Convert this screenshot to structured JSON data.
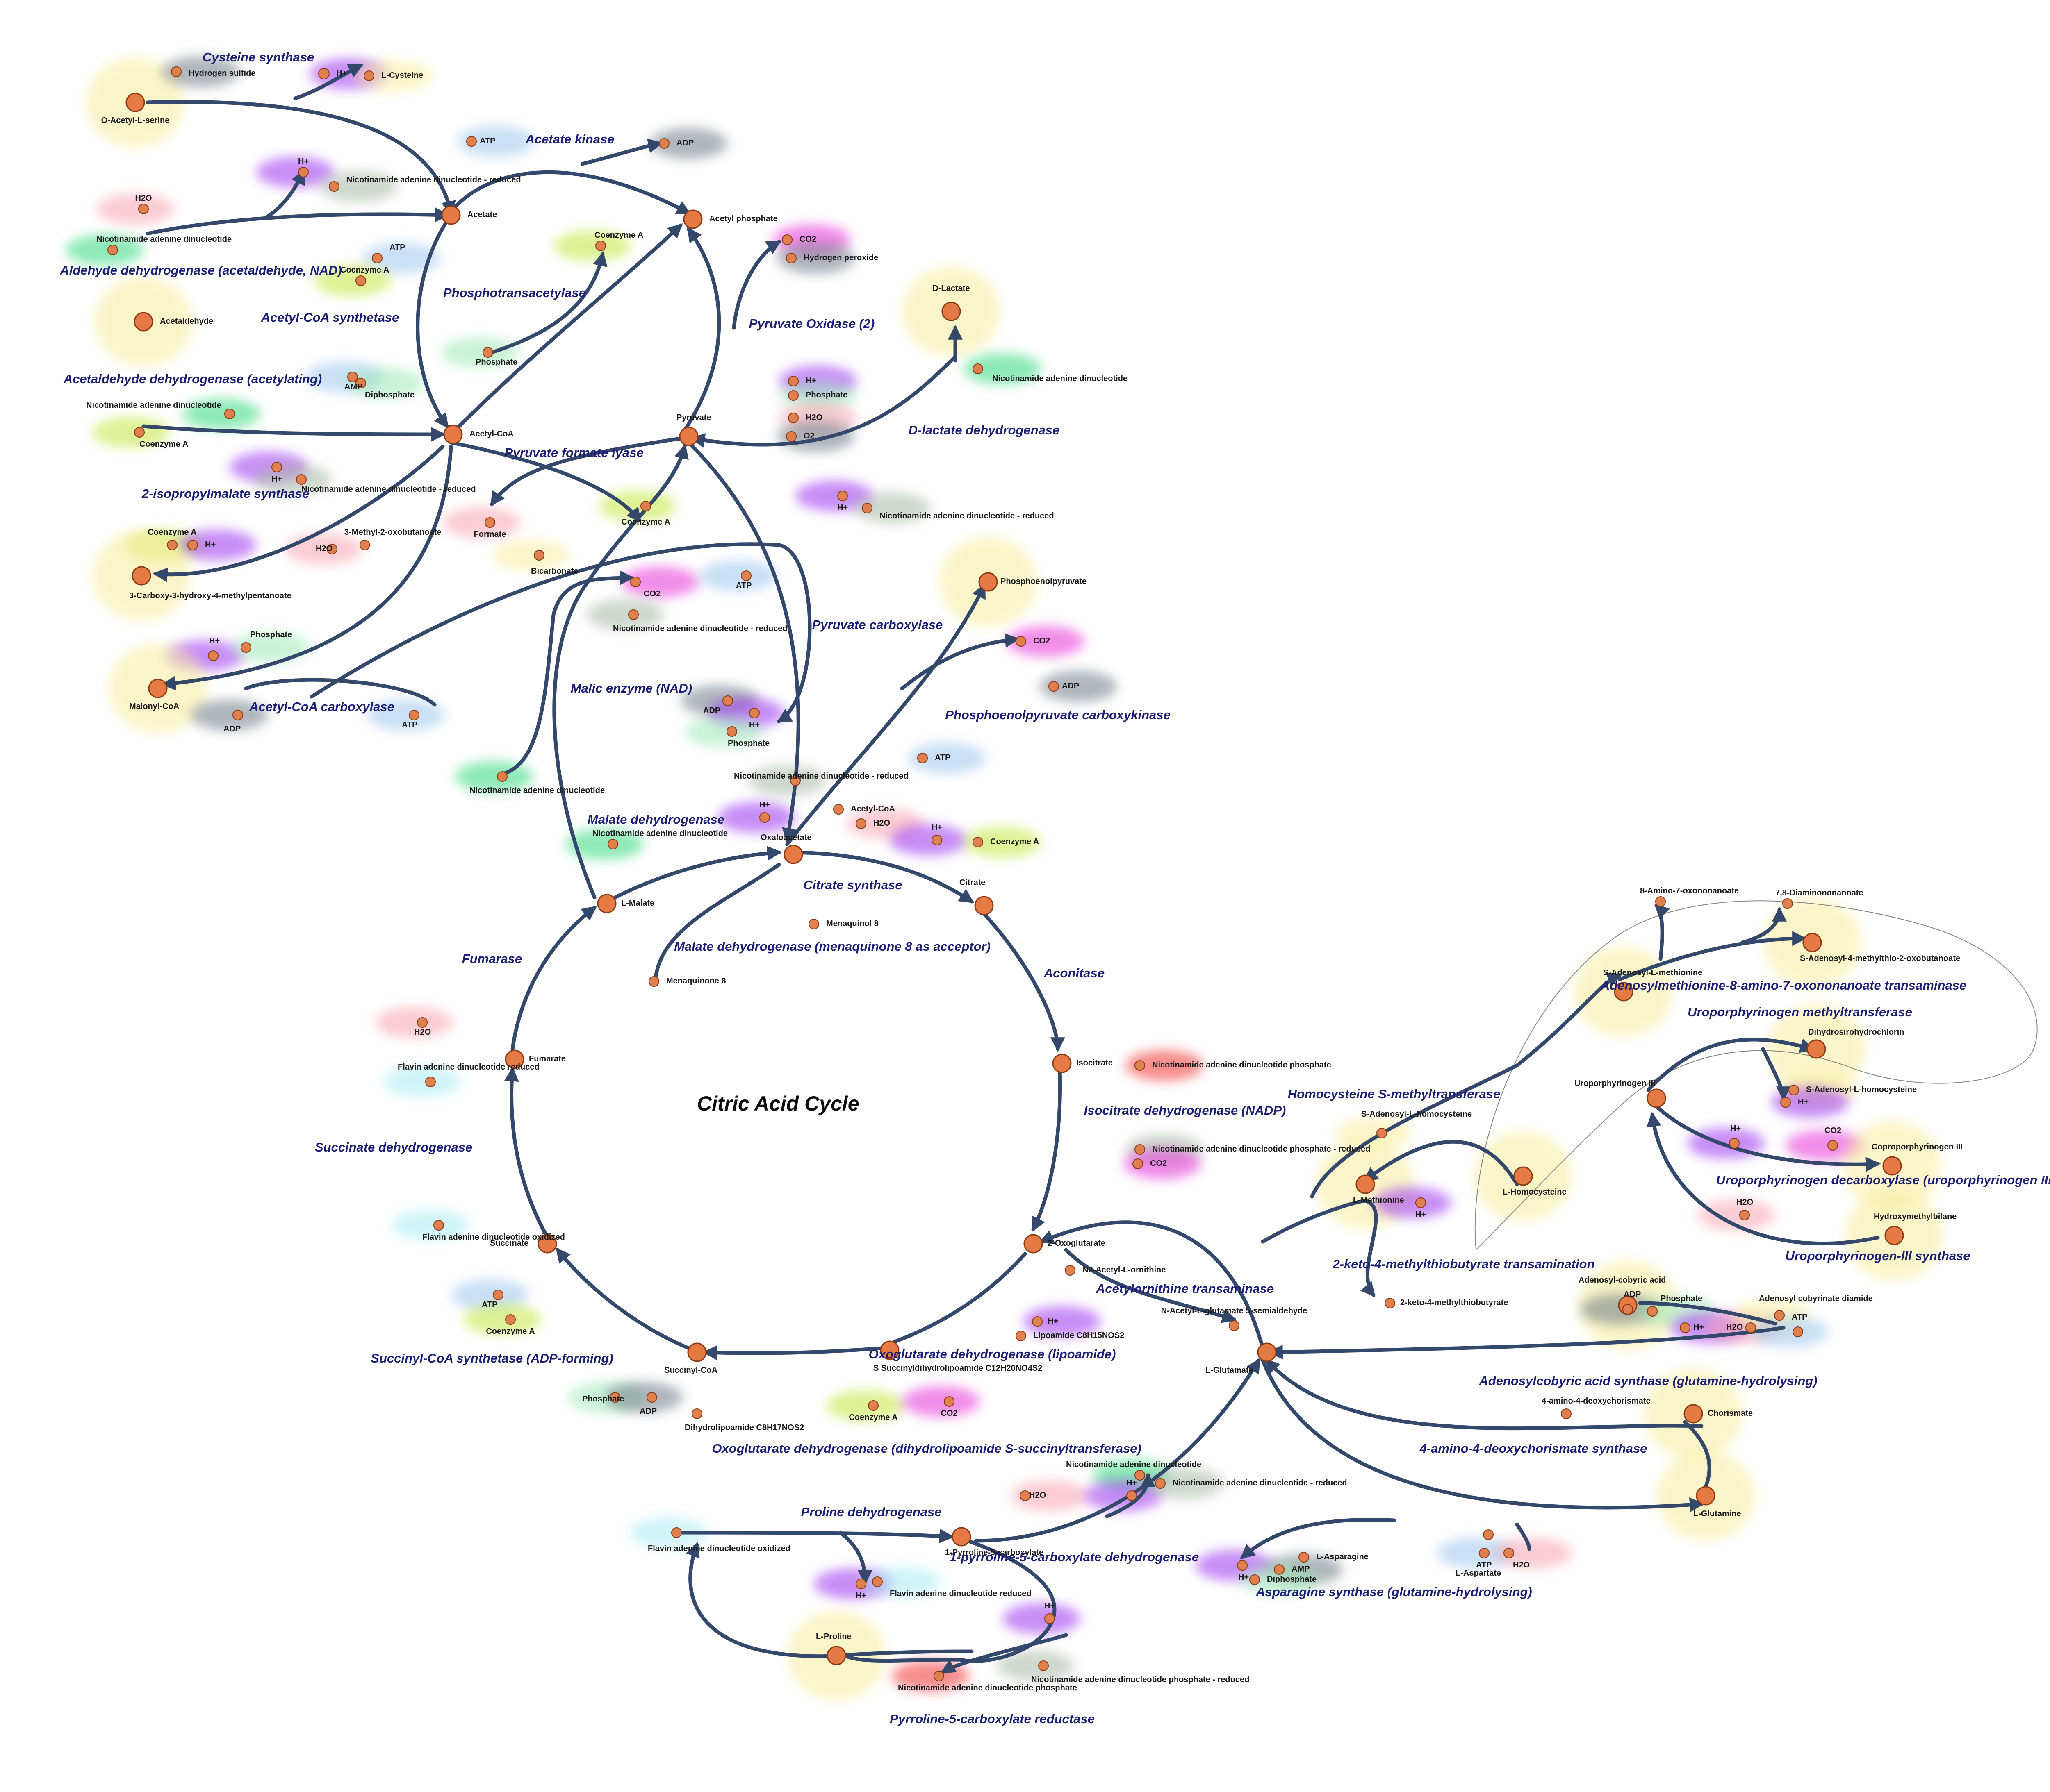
{
  "title": "Citric Acid Cycle",
  "colors": {
    "edge": "#34486b",
    "node_main": "#e57a45",
    "node_side": "#e0804e",
    "node_stroke": "#8a3b16",
    "enzyme_text": "#1c1f78",
    "glow_yellow": "#f7ed9c",
    "glow_green": "#32d97a",
    "glow_purple": "#9b32f0",
    "glow_magenta": "#e633d8",
    "glow_red": "#f26b6b",
    "glow_pink": "#f7a3b0",
    "glow_blue": "#9cc6ee",
    "glow_grey": "#6e7a85",
    "glow_cyan": "#a9ecf2",
    "glow_lime": "#c3e63c",
    "glow_mint": "#9ee8b8",
    "glow_brightred": "#f03030",
    "glow_sage": "#a7b8a5"
  },
  "metabolites": [
    {
      "id": "m1",
      "label": "O-Acetyl-L-serine"
    },
    {
      "id": "m2",
      "label": "Hydrogen sulfide"
    },
    {
      "id": "m3",
      "label": "H+"
    },
    {
      "id": "m4",
      "label": "L-Cysteine"
    },
    {
      "id": "m5",
      "label": "ATP"
    },
    {
      "id": "m6",
      "label": "ADP"
    },
    {
      "id": "m7",
      "label": "H+"
    },
    {
      "id": "m8",
      "label": "Nicotinamide adenine dinucleotide - reduced"
    },
    {
      "id": "m9",
      "label": "Acetate"
    },
    {
      "id": "m10",
      "label": "Acetyl phosphate"
    },
    {
      "id": "m11",
      "label": "H2O"
    },
    {
      "id": "m12",
      "label": "Nicotinamide adenine dinucleotide"
    },
    {
      "id": "m13",
      "label": "ATP"
    },
    {
      "id": "m14",
      "label": "Coenzyme A"
    },
    {
      "id": "m15",
      "label": "Acetaldehyde"
    },
    {
      "id": "m16",
      "label": "Coenzyme A"
    },
    {
      "id": "m17",
      "label": "Phosphate"
    },
    {
      "id": "m18",
      "label": "CO2"
    },
    {
      "id": "m19",
      "label": "Hydrogen peroxide"
    },
    {
      "id": "m20",
      "label": "D-Lactate"
    },
    {
      "id": "m21",
      "label": "AMP"
    },
    {
      "id": "m22",
      "label": "Diphosphate"
    },
    {
      "id": "m23",
      "label": "Nicotinamide adenine dinucleotide"
    },
    {
      "id": "m24",
      "label": "Nicotinamide adenine dinucleotide"
    },
    {
      "id": "m25",
      "label": "Coenzyme A"
    },
    {
      "id": "m26",
      "label": "Acetyl-CoA"
    },
    {
      "id": "m27",
      "label": "Pyruvate"
    },
    {
      "id": "m28",
      "label": "H+"
    },
    {
      "id": "m29",
      "label": "Phosphate"
    },
    {
      "id": "m30",
      "label": "H2O"
    },
    {
      "id": "m31",
      "label": "O2"
    },
    {
      "id": "m32",
      "label": "H+"
    },
    {
      "id": "m33",
      "label": "Nicotinamide adenine dinucleotide - reduced"
    },
    {
      "id": "m34",
      "label": "H+"
    },
    {
      "id": "m35",
      "label": "Nicotinamide adenine dinucleotide - reduced"
    },
    {
      "id": "m36",
      "label": "Formate"
    },
    {
      "id": "m37",
      "label": "Coenzyme A"
    },
    {
      "id": "m38",
      "label": "Coenzyme A"
    },
    {
      "id": "m39",
      "label": "H+"
    },
    {
      "id": "m40",
      "label": "H2O"
    },
    {
      "id": "m41",
      "label": "3-Methyl-2-oxobutanoate"
    },
    {
      "id": "m42",
      "label": "3-Carboxy-3-hydroxy-4-methylpentanoate"
    },
    {
      "id": "m43",
      "label": "Bicarbonate"
    },
    {
      "id": "m44",
      "label": "CO2"
    },
    {
      "id": "m45",
      "label": "ATP"
    },
    {
      "id": "m46",
      "label": "Nicotinamide adenine dinucleotide - reduced"
    },
    {
      "id": "m47",
      "label": "Phosphoenolpyruvate"
    },
    {
      "id": "m48",
      "label": "H+"
    },
    {
      "id": "m49",
      "label": "Phosphate"
    },
    {
      "id": "m50",
      "label": "Malonyl-CoA"
    },
    {
      "id": "m51",
      "label": "ADP"
    },
    {
      "id": "m52",
      "label": "ATP"
    },
    {
      "id": "m53",
      "label": "CO2"
    },
    {
      "id": "m54",
      "label": "ADP"
    },
    {
      "id": "m55",
      "label": "ADP"
    },
    {
      "id": "m56",
      "label": "H+"
    },
    {
      "id": "m57",
      "label": "Phosphate"
    },
    {
      "id": "m58",
      "label": "ATP"
    },
    {
      "id": "m59",
      "label": "Nicotinamide adenine dinucleotide"
    },
    {
      "id": "m60",
      "label": "Nicotinamide adenine dinucleotide - reduced"
    },
    {
      "id": "m61",
      "label": "H+"
    },
    {
      "id": "m62",
      "label": "Acetyl-CoA"
    },
    {
      "id": "m63",
      "label": "Nicotinamide adenine dinucleotide"
    },
    {
      "id": "m64",
      "label": "H2O"
    },
    {
      "id": "m65",
      "label": "H+"
    },
    {
      "id": "m66",
      "label": "Coenzyme A"
    },
    {
      "id": "m67",
      "label": "Oxaloacetate"
    },
    {
      "id": "m68",
      "label": "L-Malate"
    },
    {
      "id": "m69",
      "label": "Citrate"
    },
    {
      "id": "m70",
      "label": "Menaquinol 8"
    },
    {
      "id": "m71",
      "label": "Menaquinone 8"
    },
    {
      "id": "m72",
      "label": "H2O"
    },
    {
      "id": "m73",
      "label": "Fumarate"
    },
    {
      "id": "m74",
      "label": "Flavin adenine dinucleotide reduced"
    },
    {
      "id": "m75",
      "label": "Isocitrate"
    },
    {
      "id": "m76",
      "label": "Nicotinamide adenine dinucleotide phosphate"
    },
    {
      "id": "m77",
      "label": "Nicotinamide adenine dinucleotide phosphate - reduced"
    },
    {
      "id": "m78",
      "label": "CO2"
    },
    {
      "id": "m79",
      "label": "Flavin adenine dinucleotide oxidized"
    },
    {
      "id": "m80",
      "label": "Succinate"
    },
    {
      "id": "m81",
      "label": "2-Oxoglutarate"
    },
    {
      "id": "m82",
      "label": "N2-Acetyl-L-ornithine"
    },
    {
      "id": "m83",
      "label": "ATP"
    },
    {
      "id": "m84",
      "label": "Coenzyme A"
    },
    {
      "id": "m85",
      "label": "H+"
    },
    {
      "id": "m86",
      "label": "Lipoamide C8H15NOS2"
    },
    {
      "id": "m87",
      "label": "Succinyl-CoA"
    },
    {
      "id": "m88",
      "label": "S Succinyldihydrolipoamide C12H20NO4S2"
    },
    {
      "id": "m89",
      "label": "Phosphate"
    },
    {
      "id": "m90",
      "label": "ADP"
    },
    {
      "id": "m91",
      "label": "Dihydrolipoamide C8H17NOS2"
    },
    {
      "id": "m92",
      "label": "Coenzyme A"
    },
    {
      "id": "m93",
      "label": "CO2"
    },
    {
      "id": "m94",
      "label": "N-Acetyl-L-glutamate 5-semialdehyde"
    },
    {
      "id": "m95",
      "label": "L-Glutamate"
    },
    {
      "id": "m96",
      "label": "2-keto-4-methylthiobutyrate"
    },
    {
      "id": "m97",
      "label": "8-Amino-7-oxononanoate"
    },
    {
      "id": "m98",
      "label": "7,8-Diaminononanoate"
    },
    {
      "id": "m99",
      "label": "S-Adenosyl-4-methylthio-2-oxobutanoate"
    },
    {
      "id": "m100",
      "label": "S-Adenosyl-L-methionine"
    },
    {
      "id": "m101",
      "label": "Dihydrosirohydrochlorin"
    },
    {
      "id": "m102",
      "label": "Uroporphyrinogen III"
    },
    {
      "id": "m103",
      "label": "S-Adenosyl-L-homocysteine"
    },
    {
      "id": "m104",
      "label": "H+"
    },
    {
      "id": "m105",
      "label": "S-Adenosyl-L-homocysteine"
    },
    {
      "id": "m106",
      "label": "L-Methionine"
    },
    {
      "id": "m107",
      "label": "H+"
    },
    {
      "id": "m108",
      "label": "L-Homocysteine"
    },
    {
      "id": "m109",
      "label": "H+"
    },
    {
      "id": "m110",
      "label": "CO2"
    },
    {
      "id": "m111",
      "label": "Coproporphyrinogen III"
    },
    {
      "id": "m112",
      "label": "H2O"
    },
    {
      "id": "m113",
      "label": "Hydroxymethylbilane"
    },
    {
      "id": "m114",
      "label": "Adenosyl-cobyric acid"
    },
    {
      "id": "m115",
      "label": "ADP"
    },
    {
      "id": "m116",
      "label": "Phosphate"
    },
    {
      "id": "m117",
      "label": "H+"
    },
    {
      "id": "m118",
      "label": "H2O"
    },
    {
      "id": "m119",
      "label": "Adenosyl cobyrinate diamide"
    },
    {
      "id": "m120",
      "label": "ATP"
    },
    {
      "id": "m121",
      "label": "4-amino-4-deoxychorismate"
    },
    {
      "id": "m122",
      "label": "Chorismate"
    },
    {
      "id": "m123",
      "label": "L-Glutamine"
    },
    {
      "id": "m124",
      "label": "Nicotinamide adenine dinucleotide"
    },
    {
      "id": "m125",
      "label": "H2O"
    },
    {
      "id": "m126",
      "label": "H+"
    },
    {
      "id": "m127",
      "label": "Nicotinamide adenine dinucleotide - reduced"
    },
    {
      "id": "m128",
      "label": "Flavin adenine dinucleotide oxidized"
    },
    {
      "id": "m129",
      "label": "1-Pyrroline-5-carboxylate"
    },
    {
      "id": "m130",
      "label": "H+"
    },
    {
      "id": "m131",
      "label": "Flavin adenine dinucleotide reduced"
    },
    {
      "id": "m132",
      "label": "H+"
    },
    {
      "id": "m133",
      "label": "AMP"
    },
    {
      "id": "m134",
      "label": "L-Asparagine"
    },
    {
      "id": "m135",
      "label": "Diphosphate"
    },
    {
      "id": "m136",
      "label": "ATP"
    },
    {
      "id": "m137",
      "label": "H2O"
    },
    {
      "id": "m138",
      "label": "L-Aspartate"
    },
    {
      "id": "m139",
      "label": "L-Proline"
    },
    {
      "id": "m140",
      "label": "H+"
    },
    {
      "id": "m141",
      "label": "Nicotinamide adenine dinucleotide phosphate - reduced"
    },
    {
      "id": "m142",
      "label": "Nicotinamide adenine dinucleotide phosphate"
    }
  ],
  "enzymes": [
    {
      "id": "e1",
      "label": "Cysteine synthase"
    },
    {
      "id": "e2",
      "label": "Acetate kinase"
    },
    {
      "id": "e3",
      "label": "Aldehyde dehydrogenase (acetaldehyde, NAD)"
    },
    {
      "id": "e4",
      "label": "Acetyl-CoA synthetase"
    },
    {
      "id": "e5",
      "label": "Phosphotransacetylase"
    },
    {
      "id": "e6",
      "label": "Pyruvate Oxidase (2)"
    },
    {
      "id": "e7",
      "label": "Acetaldehyde dehydrogenase (acetylating)"
    },
    {
      "id": "e8",
      "label": "D-lactate dehydrogenase"
    },
    {
      "id": "e9",
      "label": "Pyruvate formate lyase"
    },
    {
      "id": "e10",
      "label": "2-isopropylmalate synthase"
    },
    {
      "id": "e11",
      "label": "Pyruvate carboxylase"
    },
    {
      "id": "e12",
      "label": "Malic enzyme (NAD)"
    },
    {
      "id": "e13",
      "label": "Acetyl-CoA carboxylase"
    },
    {
      "id": "e14",
      "label": "Phosphoenolpyruvate carboxykinase"
    },
    {
      "id": "e15",
      "label": "Malate dehydrogenase"
    },
    {
      "id": "e16",
      "label": "Citrate synthase"
    },
    {
      "id": "e17",
      "label": "Malate dehydrogenase (menaquinone 8 as acceptor)"
    },
    {
      "id": "e18",
      "label": "Fumarase"
    },
    {
      "id": "e19",
      "label": "Aconitase"
    },
    {
      "id": "e20",
      "label": "Isocitrate dehydrogenase (NADP)"
    },
    {
      "id": "e21",
      "label": "Succinate dehydrogenase"
    },
    {
      "id": "e22",
      "label": "Acetylornithine transaminase"
    },
    {
      "id": "e23",
      "label": "2-keto-4-methylthiobutyrate transamination"
    },
    {
      "id": "e24",
      "label": "Succinyl-CoA synthetase (ADP-forming)"
    },
    {
      "id": "e25",
      "label": "Oxoglutarate dehydrogenase (lipoamide)"
    },
    {
      "id": "e26",
      "label": "Oxoglutarate dehydrogenase (dihydrolipoamide S-succinyltransferase)"
    },
    {
      "id": "e27",
      "label": "Adenosylmethionine-8-amino-7-oxononanoate transaminase"
    },
    {
      "id": "e28",
      "label": "Uroporphyrinogen methyltransferase"
    },
    {
      "id": "e29",
      "label": "Homocysteine S-methyltransferase"
    },
    {
      "id": "e30",
      "label": "Uroporphyrinogen decarboxylase (uroporphyrinogen III)"
    },
    {
      "id": "e31",
      "label": "Uroporphyrinogen-III synthase"
    },
    {
      "id": "e32",
      "label": "Adenosylcobyric acid synthase (glutamine-hydrolysing)"
    },
    {
      "id": "e33",
      "label": "4-amino-4-deoxychorismate synthase"
    },
    {
      "id": "e34",
      "label": "Proline dehydrogenase"
    },
    {
      "id": "e35",
      "label": "1-pyrroline-5-carboxylate dehydrogenase"
    },
    {
      "id": "e36",
      "label": "Asparagine synthase (glutamine-hydrolysing)"
    },
    {
      "id": "e37",
      "label": "Pyrroline-5-carboxylate reductase"
    }
  ]
}
